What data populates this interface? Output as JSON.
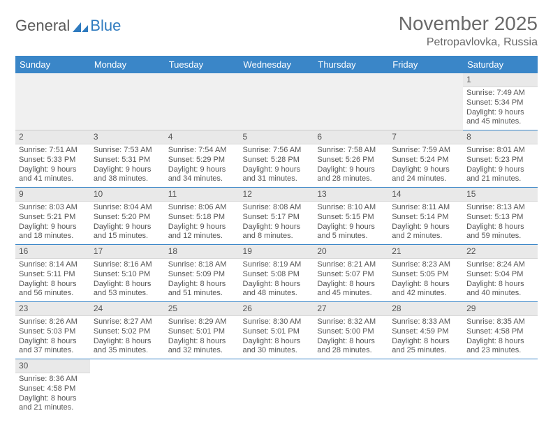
{
  "brand": {
    "part1": "General",
    "part2": "Blue"
  },
  "title": "November 2025",
  "location": "Petropavlovka, Russia",
  "colors": {
    "header_bg": "#3a86c8",
    "header_text": "#ffffff",
    "row_divider": "#3a86c8",
    "daynum_bg": "#e9e9e9",
    "text": "#555555",
    "logo_blue": "#2f7bbf"
  },
  "weekdays": [
    "Sunday",
    "Monday",
    "Tuesday",
    "Wednesday",
    "Thursday",
    "Friday",
    "Saturday"
  ],
  "weeks": [
    [
      null,
      null,
      null,
      null,
      null,
      null,
      {
        "n": "1",
        "sunrise": "Sunrise: 7:49 AM",
        "sunset": "Sunset: 5:34 PM",
        "day1": "Daylight: 9 hours",
        "day2": "and 45 minutes."
      }
    ],
    [
      {
        "n": "2",
        "sunrise": "Sunrise: 7:51 AM",
        "sunset": "Sunset: 5:33 PM",
        "day1": "Daylight: 9 hours",
        "day2": "and 41 minutes."
      },
      {
        "n": "3",
        "sunrise": "Sunrise: 7:53 AM",
        "sunset": "Sunset: 5:31 PM",
        "day1": "Daylight: 9 hours",
        "day2": "and 38 minutes."
      },
      {
        "n": "4",
        "sunrise": "Sunrise: 7:54 AM",
        "sunset": "Sunset: 5:29 PM",
        "day1": "Daylight: 9 hours",
        "day2": "and 34 minutes."
      },
      {
        "n": "5",
        "sunrise": "Sunrise: 7:56 AM",
        "sunset": "Sunset: 5:28 PM",
        "day1": "Daylight: 9 hours",
        "day2": "and 31 minutes."
      },
      {
        "n": "6",
        "sunrise": "Sunrise: 7:58 AM",
        "sunset": "Sunset: 5:26 PM",
        "day1": "Daylight: 9 hours",
        "day2": "and 28 minutes."
      },
      {
        "n": "7",
        "sunrise": "Sunrise: 7:59 AM",
        "sunset": "Sunset: 5:24 PM",
        "day1": "Daylight: 9 hours",
        "day2": "and 24 minutes."
      },
      {
        "n": "8",
        "sunrise": "Sunrise: 8:01 AM",
        "sunset": "Sunset: 5:23 PM",
        "day1": "Daylight: 9 hours",
        "day2": "and 21 minutes."
      }
    ],
    [
      {
        "n": "9",
        "sunrise": "Sunrise: 8:03 AM",
        "sunset": "Sunset: 5:21 PM",
        "day1": "Daylight: 9 hours",
        "day2": "and 18 minutes."
      },
      {
        "n": "10",
        "sunrise": "Sunrise: 8:04 AM",
        "sunset": "Sunset: 5:20 PM",
        "day1": "Daylight: 9 hours",
        "day2": "and 15 minutes."
      },
      {
        "n": "11",
        "sunrise": "Sunrise: 8:06 AM",
        "sunset": "Sunset: 5:18 PM",
        "day1": "Daylight: 9 hours",
        "day2": "and 12 minutes."
      },
      {
        "n": "12",
        "sunrise": "Sunrise: 8:08 AM",
        "sunset": "Sunset: 5:17 PM",
        "day1": "Daylight: 9 hours",
        "day2": "and 8 minutes."
      },
      {
        "n": "13",
        "sunrise": "Sunrise: 8:10 AM",
        "sunset": "Sunset: 5:15 PM",
        "day1": "Daylight: 9 hours",
        "day2": "and 5 minutes."
      },
      {
        "n": "14",
        "sunrise": "Sunrise: 8:11 AM",
        "sunset": "Sunset: 5:14 PM",
        "day1": "Daylight: 9 hours",
        "day2": "and 2 minutes."
      },
      {
        "n": "15",
        "sunrise": "Sunrise: 8:13 AM",
        "sunset": "Sunset: 5:13 PM",
        "day1": "Daylight: 8 hours",
        "day2": "and 59 minutes."
      }
    ],
    [
      {
        "n": "16",
        "sunrise": "Sunrise: 8:14 AM",
        "sunset": "Sunset: 5:11 PM",
        "day1": "Daylight: 8 hours",
        "day2": "and 56 minutes."
      },
      {
        "n": "17",
        "sunrise": "Sunrise: 8:16 AM",
        "sunset": "Sunset: 5:10 PM",
        "day1": "Daylight: 8 hours",
        "day2": "and 53 minutes."
      },
      {
        "n": "18",
        "sunrise": "Sunrise: 8:18 AM",
        "sunset": "Sunset: 5:09 PM",
        "day1": "Daylight: 8 hours",
        "day2": "and 51 minutes."
      },
      {
        "n": "19",
        "sunrise": "Sunrise: 8:19 AM",
        "sunset": "Sunset: 5:08 PM",
        "day1": "Daylight: 8 hours",
        "day2": "and 48 minutes."
      },
      {
        "n": "20",
        "sunrise": "Sunrise: 8:21 AM",
        "sunset": "Sunset: 5:07 PM",
        "day1": "Daylight: 8 hours",
        "day2": "and 45 minutes."
      },
      {
        "n": "21",
        "sunrise": "Sunrise: 8:23 AM",
        "sunset": "Sunset: 5:05 PM",
        "day1": "Daylight: 8 hours",
        "day2": "and 42 minutes."
      },
      {
        "n": "22",
        "sunrise": "Sunrise: 8:24 AM",
        "sunset": "Sunset: 5:04 PM",
        "day1": "Daylight: 8 hours",
        "day2": "and 40 minutes."
      }
    ],
    [
      {
        "n": "23",
        "sunrise": "Sunrise: 8:26 AM",
        "sunset": "Sunset: 5:03 PM",
        "day1": "Daylight: 8 hours",
        "day2": "and 37 minutes."
      },
      {
        "n": "24",
        "sunrise": "Sunrise: 8:27 AM",
        "sunset": "Sunset: 5:02 PM",
        "day1": "Daylight: 8 hours",
        "day2": "and 35 minutes."
      },
      {
        "n": "25",
        "sunrise": "Sunrise: 8:29 AM",
        "sunset": "Sunset: 5:01 PM",
        "day1": "Daylight: 8 hours",
        "day2": "and 32 minutes."
      },
      {
        "n": "26",
        "sunrise": "Sunrise: 8:30 AM",
        "sunset": "Sunset: 5:01 PM",
        "day1": "Daylight: 8 hours",
        "day2": "and 30 minutes."
      },
      {
        "n": "27",
        "sunrise": "Sunrise: 8:32 AM",
        "sunset": "Sunset: 5:00 PM",
        "day1": "Daylight: 8 hours",
        "day2": "and 28 minutes."
      },
      {
        "n": "28",
        "sunrise": "Sunrise: 8:33 AM",
        "sunset": "Sunset: 4:59 PM",
        "day1": "Daylight: 8 hours",
        "day2": "and 25 minutes."
      },
      {
        "n": "29",
        "sunrise": "Sunrise: 8:35 AM",
        "sunset": "Sunset: 4:58 PM",
        "day1": "Daylight: 8 hours",
        "day2": "and 23 minutes."
      }
    ],
    [
      {
        "n": "30",
        "sunrise": "Sunrise: 8:36 AM",
        "sunset": "Sunset: 4:58 PM",
        "day1": "Daylight: 8 hours",
        "day2": "and 21 minutes."
      },
      null,
      null,
      null,
      null,
      null,
      null
    ]
  ]
}
